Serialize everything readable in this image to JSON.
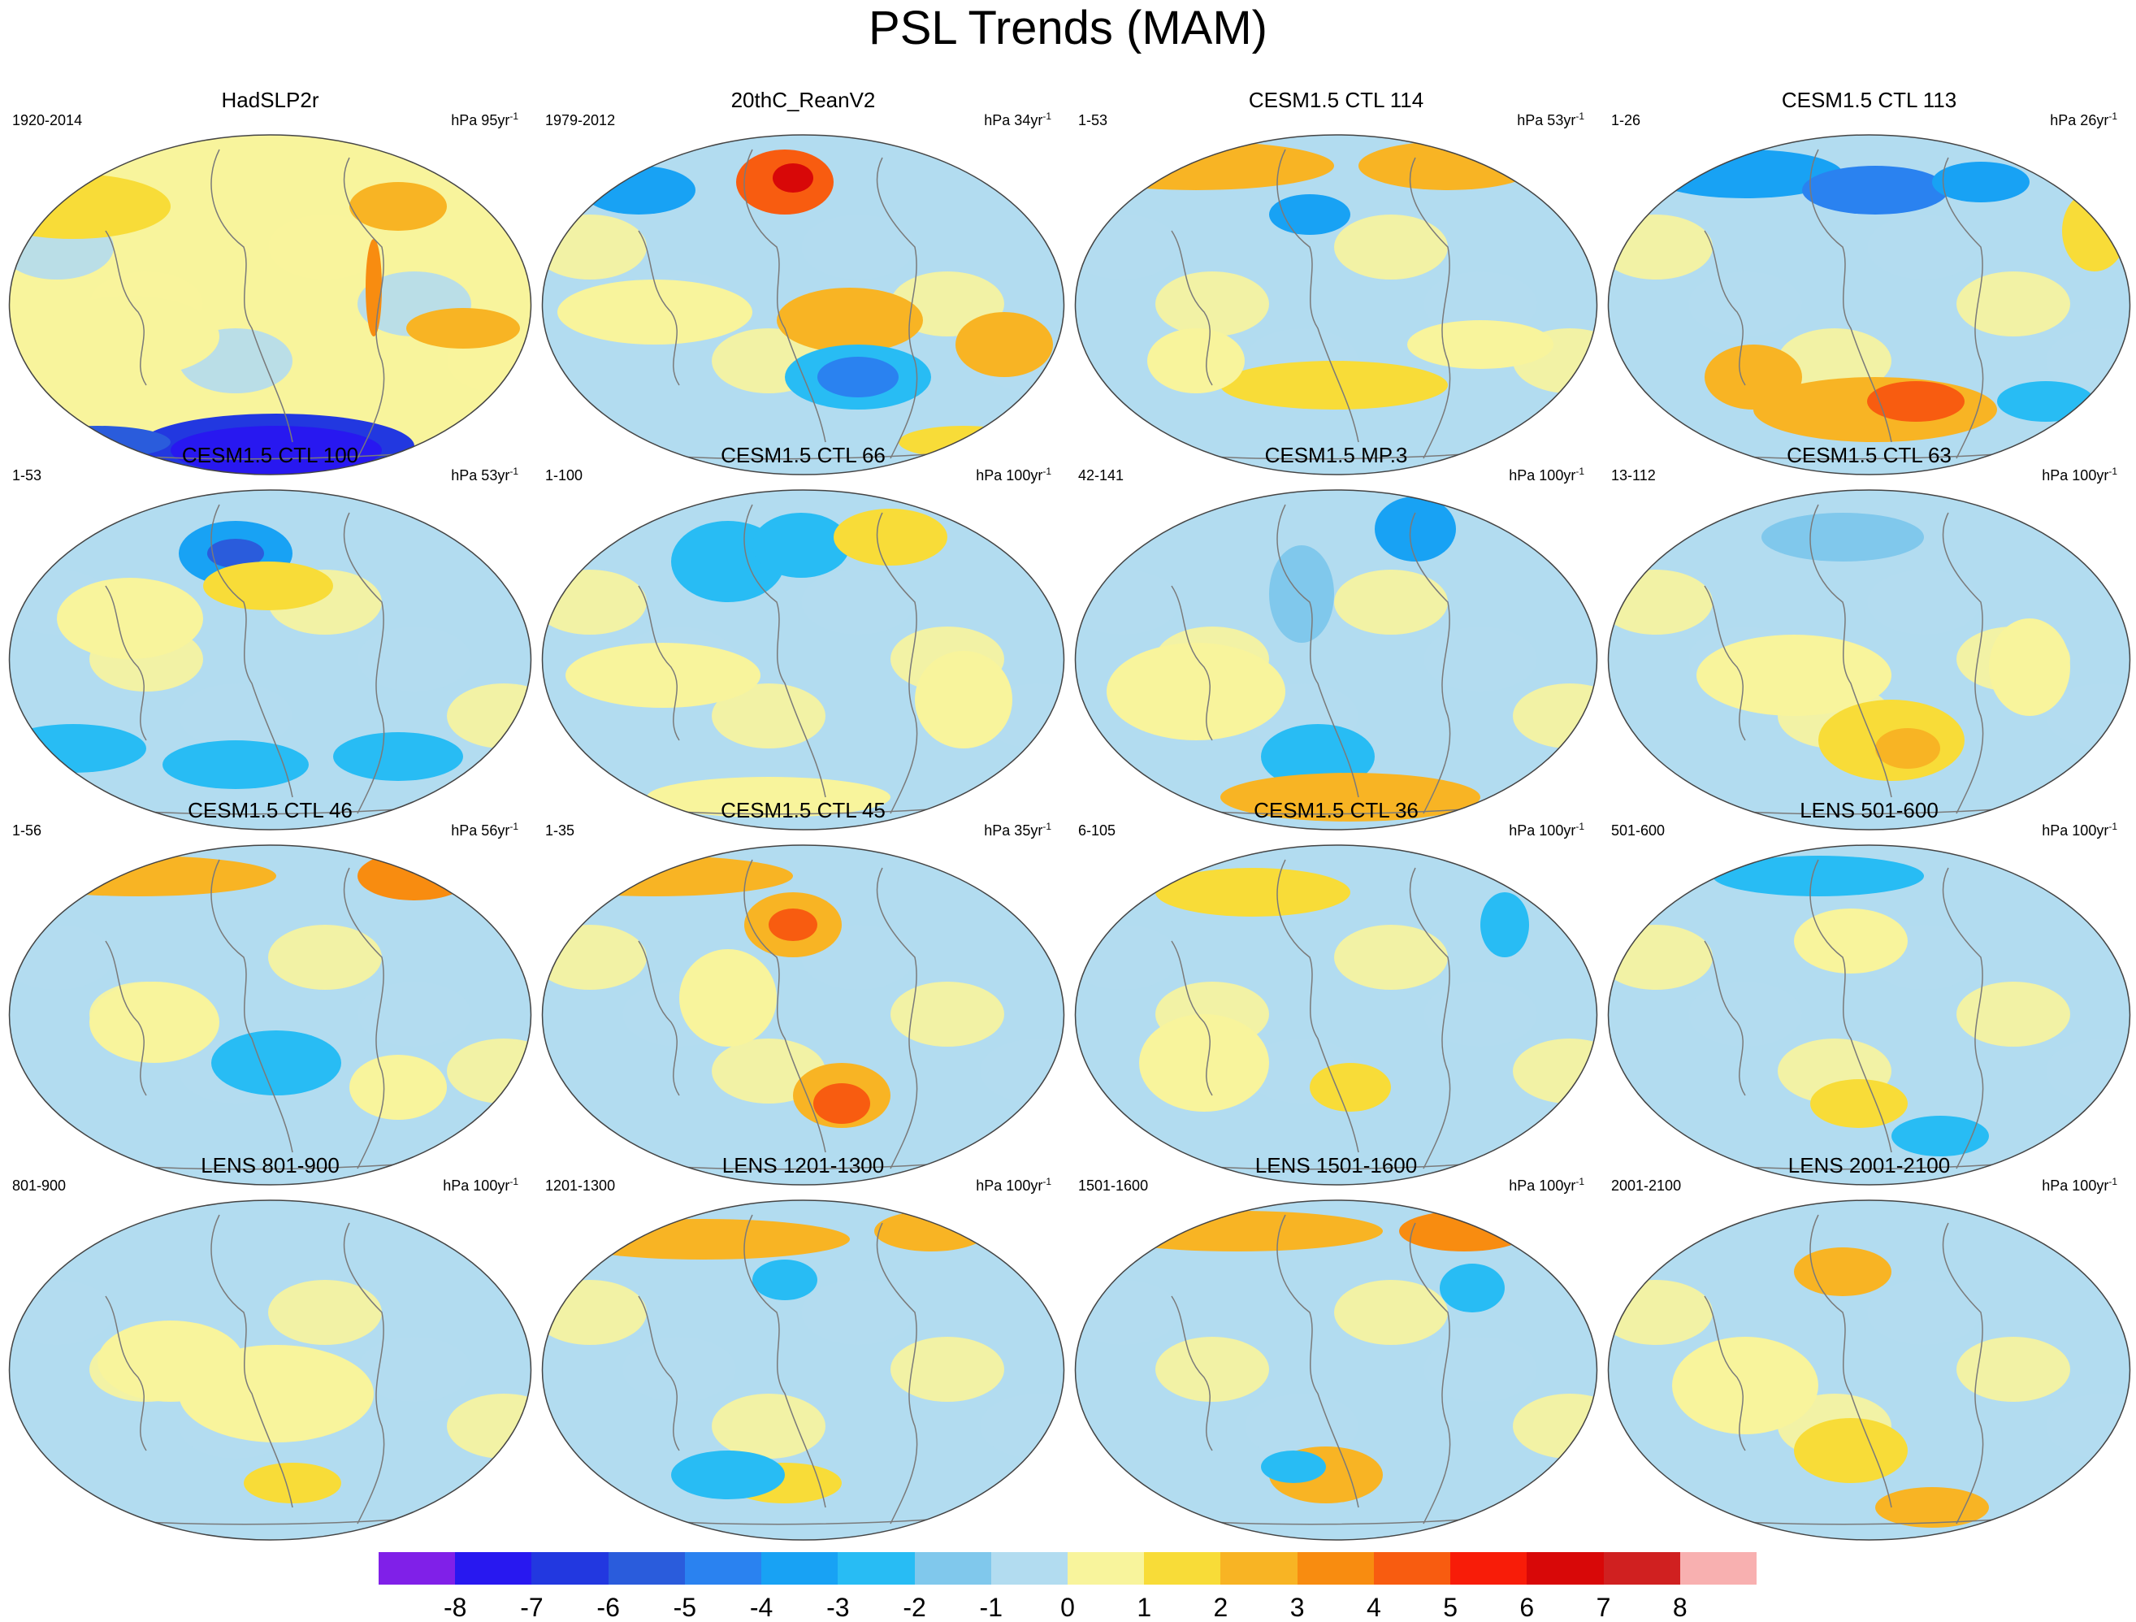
{
  "figure": {
    "title": "PSL Trends (MAM)"
  },
  "colorbar": {
    "labels": [
      "-8",
      "-7",
      "-6",
      "-5",
      "-4",
      "-3",
      "-2",
      "-1",
      "0",
      "1",
      "2",
      "3",
      "4",
      "5",
      "6",
      "7",
      "8"
    ],
    "colors": [
      "#8020e8",
      "#2818f0",
      "#2238e0",
      "#2a5cdc",
      "#2a82f0",
      "#18a2f4",
      "#28bcf4",
      "#80c8ec",
      "#b2dcf0",
      "#f8f49c",
      "#f8dc38",
      "#f8b424",
      "#f88c10",
      "#f85c10",
      "#f81c08",
      "#d80808",
      "#d02020",
      "#f8b0b0"
    ]
  },
  "panels": [
    {
      "title": "HadSLP2r",
      "range": "1920-2014",
      "units": "hPa 95yr",
      "sup": "-1"
    },
    {
      "title": "20thC_ReanV2",
      "range": "1979-2012",
      "units": "hPa 34yr",
      "sup": "-1"
    },
    {
      "title": "CESM1.5 CTL 114",
      "range": "1-53",
      "units": "hPa 53yr",
      "sup": "-1"
    },
    {
      "title": "CESM1.5 CTL 113",
      "range": "1-26",
      "units": "hPa 26yr",
      "sup": "-1"
    },
    {
      "title": "CESM1.5 CTL 100",
      "range": "1-53",
      "units": "hPa 53yr",
      "sup": "-1"
    },
    {
      "title": "CESM1.5 CTL 66",
      "range": "1-100",
      "units": "hPa 100yr",
      "sup": "-1"
    },
    {
      "title": "CESM1.5 MP.3",
      "range": "42-141",
      "units": "hPa 100yr",
      "sup": "-1"
    },
    {
      "title": "CESM1.5 CTL 63",
      "range": "13-112",
      "units": "hPa 100yr",
      "sup": "-1"
    },
    {
      "title": "CESM1.5 CTL 46",
      "range": "1-56",
      "units": "hPa 56yr",
      "sup": "-1"
    },
    {
      "title": "CESM1.5 CTL 45",
      "range": "1-35",
      "units": "hPa 35yr",
      "sup": "-1"
    },
    {
      "title": "CESM1.5 CTL 36",
      "range": "6-105",
      "units": "hPa 100yr",
      "sup": "-1"
    },
    {
      "title": "LENS 501-600",
      "range": "501-600",
      "units": "hPa 100yr",
      "sup": "-1"
    },
    {
      "title": "LENS 801-900",
      "range": "801-900",
      "units": "hPa 100yr",
      "sup": "-1"
    },
    {
      "title": "LENS 1201-1300",
      "range": "1201-1300",
      "units": "hPa 100yr",
      "sup": "-1"
    },
    {
      "title": "LENS 1501-1600",
      "range": "1501-1600",
      "units": "hPa 100yr",
      "sup": "-1"
    },
    {
      "title": "LENS 2001-2100",
      "range": "2001-2100",
      "units": "hPa 100yr",
      "sup": "-1"
    }
  ]
}
